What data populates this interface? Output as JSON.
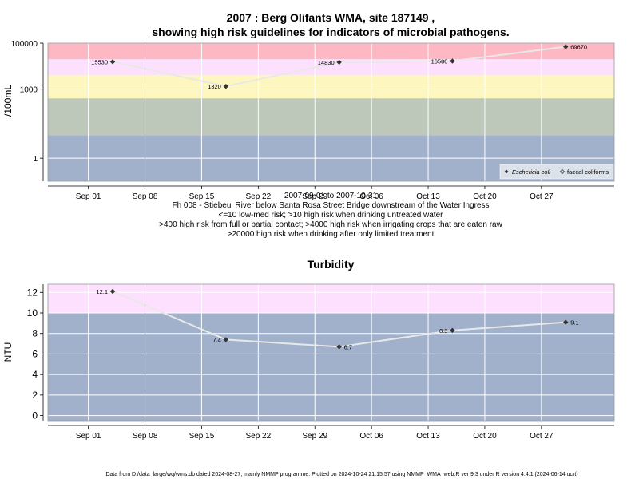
{
  "page": {
    "footer": "Data from D:/data_large/wq/wms.db dated 2024-08-27, mainly NMMP programme. Plotted on 2024-10-24 21:15:57 using NMMP_WMA_web.R ver 9.3 under R version 4.4.1 (2024-06-14 ucrt)"
  },
  "colors": {
    "band_blue": "#a1b1cb",
    "band_green": "#bdc8bb",
    "band_yellow": "#fdf7bf",
    "band_pink_light": "#fde0fd",
    "band_red": "#fdb8c3",
    "grid": "#ffffff",
    "line": "#e8e8e8",
    "point": "#333333",
    "axis": "#000000"
  },
  "chart_data": [
    {
      "type": "line",
      "title_line1": "2007 : Berg Olifants WMA, site 187149 ,",
      "title_line2": "showing high risk guidelines for indicators of microbial pathogens.",
      "ylabel": "/100mL",
      "yscale": "log",
      "ylim": [
        0.1,
        100000
      ],
      "yticks": [
        1,
        1000,
        100000
      ],
      "ytick_labels": [
        "1",
        "1000",
        "100000"
      ],
      "xlim": [
        "2007-08-27",
        "2007-11-05"
      ],
      "xticks": [
        "2007-09-01",
        "2007-09-08",
        "2007-09-15",
        "2007-09-22",
        "2007-09-29",
        "2007-10-06",
        "2007-10-13",
        "2007-10-20",
        "2007-10-27"
      ],
      "xtick_labels": [
        "Sep 01",
        "Sep 08",
        "Sep 15",
        "Sep 22",
        "Sep 29",
        "Oct 06",
        "Oct 13",
        "Oct 20",
        "Oct 27"
      ],
      "bands": [
        {
          "from": 0.1,
          "to": 10,
          "color": "#a1b1cb"
        },
        {
          "from": 10,
          "to": 400,
          "color": "#bdc8bb"
        },
        {
          "from": 400,
          "to": 4000,
          "color": "#fdf7bf"
        },
        {
          "from": 4000,
          "to": 20000,
          "color": "#fde0fd"
        },
        {
          "from": 20000,
          "to": 100000,
          "color": "#fdb8c3"
        }
      ],
      "series": [
        {
          "name": "Eschericia coli",
          "x": [
            "2007-09-04",
            "2007-09-18",
            "2007-10-02",
            "2007-10-16",
            "2007-10-30"
          ],
          "values": [
            15530,
            1320,
            14830,
            16580,
            69670
          ],
          "labels": [
            "15530",
            "1320",
            "14830",
            "16580",
            "69670"
          ]
        }
      ],
      "legend": {
        "position": "bottom-right",
        "items": [
          "Eschericia coli",
          "faecal coliforms"
        ]
      },
      "caption": {
        "range": "2007-09-01 to 2007-10-31",
        "site": "Fh 008 - Stiebeul River below Santa Rosa Street Bridge downstream of the Water Ingress",
        "line1": "<=10 low-med risk; >10 high risk when drinking untreated water",
        "line2": ">400 high risk from full or partial contact; >4000 high risk when irrigating crops that are eaten raw",
        "line3": ">20000 high risk when drinking after only limited treatment"
      },
      "grid": true
    },
    {
      "type": "line",
      "title": "Turbidity",
      "ylabel": "NTU",
      "ylim": [
        -0.5,
        12.8
      ],
      "yticks": [
        0,
        2,
        4,
        6,
        8,
        10,
        12
      ],
      "xlim": [
        "2007-08-27",
        "2007-11-05"
      ],
      "xticks": [
        "2007-09-01",
        "2007-09-08",
        "2007-09-15",
        "2007-09-22",
        "2007-09-29",
        "2007-10-06",
        "2007-10-13",
        "2007-10-20",
        "2007-10-27"
      ],
      "xtick_labels": [
        "Sep 01",
        "Sep 08",
        "Sep 15",
        "Sep 22",
        "Sep 29",
        "Oct 06",
        "Oct 13",
        "Oct 20",
        "Oct 27"
      ],
      "bands": [
        {
          "from": -0.5,
          "to": 10,
          "color": "#a1b1cb"
        },
        {
          "from": 10,
          "to": 12.8,
          "color": "#fde0fd"
        }
      ],
      "series": [
        {
          "name": "",
          "x": [
            "2007-09-04",
            "2007-09-18",
            "2007-10-02",
            "2007-10-16",
            "2007-10-30"
          ],
          "values": [
            12.1,
            7.4,
            6.7,
            8.3,
            9.1
          ],
          "labels": [
            "12.1",
            "7.4",
            "6.7",
            "8.3",
            "9.1"
          ]
        }
      ],
      "grid": true
    }
  ]
}
